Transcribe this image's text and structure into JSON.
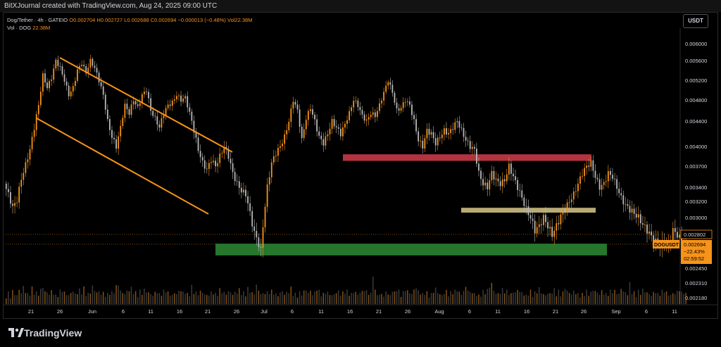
{
  "header": {
    "attribution": "BitXJournal created with TradingView.com, Aug 24, 2025 09:00 UTC"
  },
  "legend": {
    "symbol": "Dog/Tether · 4h · GATEIO",
    "ohlc": "O0.002704 H0.002727 L0.002688 C0.002694 −0.000013 (−0.48%) Vol22.38M",
    "volume": "Vol · DOG",
    "volume_value": "22.38M"
  },
  "currency_button": "USDT",
  "brand": "TradingView",
  "colors": {
    "up": "#f7931a",
    "down": "#b8b8b8",
    "channel": "#f7931a",
    "resistance_zone": "#c73a45",
    "mid_zone": "#d8c98a",
    "support_zone": "#2e8b35",
    "price_tag": "#f7931a"
  },
  "chart_data": {
    "type": "candlestick",
    "title": "",
    "price_axis": {
      "ticks": [
        "0.006000",
        "0.005600",
        "0.005200",
        "0.004800",
        "0.004400",
        "0.004000",
        "0.003700",
        "0.003400",
        "0.003200",
        "0.003000",
        "0.002802",
        "0.002694",
        "0.002450",
        "0.002310",
        "0.002180"
      ]
    },
    "time_axis": {
      "ticks": [
        "21",
        "26",
        "Jun",
        "6",
        "11",
        "16",
        "21",
        "26",
        "Jul",
        "6",
        "11",
        "16",
        "21",
        "26",
        "Aug",
        "6",
        "11",
        "16",
        "21",
        "26",
        "Sep",
        "6",
        "11"
      ]
    },
    "price_series": [
      [
        0,
        0.00345
      ],
      [
        2,
        0.0033
      ],
      [
        4,
        0.00312
      ],
      [
        6,
        0.00322
      ],
      [
        8,
        0.00352
      ],
      [
        10,
        0.00372
      ],
      [
        12,
        0.00395
      ],
      [
        14,
        0.0043
      ],
      [
        16,
        0.0047
      ],
      [
        18,
        0.0053
      ],
      [
        20,
        0.00505
      ],
      [
        22,
        0.00525
      ],
      [
        24,
        0.0056
      ],
      [
        26,
        0.00545
      ],
      [
        28,
        0.0052
      ],
      [
        30,
        0.0049
      ],
      [
        32,
        0.00505
      ],
      [
        34,
        0.0054
      ],
      [
        36,
        0.00555
      ],
      [
        38,
        0.00535
      ],
      [
        40,
        0.0056
      ],
      [
        42,
        0.00545
      ],
      [
        44,
        0.0052
      ],
      [
        46,
        0.0049
      ],
      [
        48,
        0.0044
      ],
      [
        50,
        0.00415
      ],
      [
        52,
        0.004
      ],
      [
        54,
        0.0043
      ],
      [
        56,
        0.0047
      ],
      [
        58,
        0.00455
      ],
      [
        60,
        0.0048
      ],
      [
        62,
        0.00465
      ],
      [
        64,
        0.0049
      ],
      [
        66,
        0.005
      ],
      [
        68,
        0.0046
      ],
      [
        70,
        0.00445
      ],
      [
        72,
        0.0043
      ],
      [
        74,
        0.00455
      ],
      [
        76,
        0.0047
      ],
      [
        78,
        0.00475
      ],
      [
        80,
        0.0049
      ],
      [
        82,
        0.0048
      ],
      [
        84,
        0.00485
      ],
      [
        86,
        0.00455
      ],
      [
        88,
        0.00425
      ],
      [
        90,
        0.00395
      ],
      [
        92,
        0.00375
      ],
      [
        94,
        0.00365
      ],
      [
        96,
        0.0038
      ],
      [
        98,
        0.0037
      ],
      [
        100,
        0.00385
      ],
      [
        102,
        0.004
      ],
      [
        104,
        0.00385
      ],
      [
        106,
        0.0036
      ],
      [
        108,
        0.00345
      ],
      [
        110,
        0.00335
      ],
      [
        112,
        0.0033
      ],
      [
        114,
        0.00305
      ],
      [
        116,
        0.00282
      ],
      [
        118,
        0.0027
      ],
      [
        119,
        0.00262
      ],
      [
        120,
        0.0029
      ],
      [
        122,
        0.0034
      ],
      [
        124,
        0.00375
      ],
      [
        126,
        0.0039
      ],
      [
        128,
        0.004
      ],
      [
        130,
        0.00415
      ],
      [
        132,
        0.0044
      ],
      [
        134,
        0.0048
      ],
      [
        136,
        0.0046
      ],
      [
        138,
        0.0041
      ],
      [
        140,
        0.00445
      ],
      [
        142,
        0.00465
      ],
      [
        144,
        0.0044
      ],
      [
        146,
        0.00415
      ],
      [
        148,
        0.00405
      ],
      [
        150,
        0.0042
      ],
      [
        152,
        0.0044
      ],
      [
        154,
        0.0043
      ],
      [
        156,
        0.0042
      ],
      [
        158,
        0.00435
      ],
      [
        160,
        0.00455
      ],
      [
        162,
        0.0048
      ],
      [
        164,
        0.0047
      ],
      [
        166,
        0.0045
      ],
      [
        168,
        0.0044
      ],
      [
        170,
        0.00455
      ],
      [
        172,
        0.0045
      ],
      [
        174,
        0.0047
      ],
      [
        176,
        0.00495
      ],
      [
        178,
        0.0052
      ],
      [
        180,
        0.00495
      ],
      [
        182,
        0.0046
      ],
      [
        184,
        0.00465
      ],
      [
        186,
        0.0048
      ],
      [
        188,
        0.0047
      ],
      [
        190,
        0.0044
      ],
      [
        192,
        0.0041
      ],
      [
        194,
        0.004
      ],
      [
        196,
        0.00425
      ],
      [
        198,
        0.0042
      ],
      [
        200,
        0.00405
      ],
      [
        202,
        0.00415
      ],
      [
        204,
        0.00425
      ],
      [
        206,
        0.0042
      ],
      [
        208,
        0.0043
      ],
      [
        210,
        0.0044
      ],
      [
        212,
        0.00425
      ],
      [
        214,
        0.0041
      ],
      [
        216,
        0.004
      ],
      [
        218,
        0.00395
      ],
      [
        220,
        0.0036
      ],
      [
        222,
        0.00345
      ],
      [
        224,
        0.0034
      ],
      [
        226,
        0.0036
      ],
      [
        228,
        0.0035
      ],
      [
        230,
        0.00345
      ],
      [
        232,
        0.0035
      ],
      [
        234,
        0.0037
      ],
      [
        236,
        0.00355
      ],
      [
        238,
        0.0034
      ],
      [
        240,
        0.00325
      ],
      [
        242,
        0.0031
      ],
      [
        244,
        0.003
      ],
      [
        246,
        0.00285
      ],
      [
        248,
        0.0029
      ],
      [
        250,
        0.003
      ],
      [
        252,
        0.0029
      ],
      [
        254,
        0.0028
      ],
      [
        256,
        0.0029
      ],
      [
        258,
        0.00302
      ],
      [
        260,
        0.0031
      ],
      [
        262,
        0.0032
      ],
      [
        264,
        0.0033
      ],
      [
        266,
        0.00345
      ],
      [
        268,
        0.0036
      ],
      [
        270,
        0.0037
      ],
      [
        272,
        0.00375
      ],
      [
        274,
        0.00355
      ],
      [
        276,
        0.0034
      ],
      [
        278,
        0.00345
      ],
      [
        280,
        0.0036
      ],
      [
        282,
        0.00355
      ],
      [
        284,
        0.0034
      ],
      [
        286,
        0.00325
      ],
      [
        288,
        0.00315
      ],
      [
        290,
        0.0031
      ],
      [
        292,
        0.00305
      ],
      [
        294,
        0.003
      ],
      [
        296,
        0.00292
      ],
      [
        298,
        0.00285
      ],
      [
        300,
        0.00278
      ],
      [
        302,
        0.00272
      ],
      [
        304,
        0.00268
      ],
      [
        306,
        0.00272
      ],
      [
        308,
        0.00268
      ],
      [
        310,
        0.00285
      ],
      [
        312,
        0.0028
      ],
      [
        314,
        0.00272
      ],
      [
        316,
        0.002694
      ]
    ],
    "volume_series": [
      6,
      8,
      5,
      9,
      7,
      6,
      10,
      8,
      12,
      9,
      7,
      8,
      11,
      9,
      8,
      7,
      10,
      12,
      9,
      8,
      7,
      9,
      8,
      6,
      7,
      9,
      11,
      8,
      7,
      6,
      8,
      9,
      7,
      8,
      10,
      9,
      11,
      8,
      7,
      9,
      12,
      10,
      8,
      9,
      7,
      8,
      6,
      7,
      9,
      8,
      10,
      12,
      15,
      9,
      8,
      7,
      9,
      10,
      11,
      9,
      8,
      7,
      9,
      8,
      10,
      9,
      8,
      7,
      6,
      8,
      9,
      7,
      8,
      9,
      11,
      8,
      7,
      6,
      8,
      7,
      9,
      10,
      8,
      9,
      7,
      8,
      12,
      9,
      8,
      7,
      9,
      8,
      7,
      6,
      7,
      8,
      9,
      7,
      8,
      10,
      9,
      8,
      7,
      9,
      8,
      7,
      8,
      9,
      10,
      9,
      8,
      7,
      11,
      9,
      8,
      7,
      14,
      9,
      8,
      7,
      9,
      8,
      10,
      9,
      8,
      7,
      6,
      8,
      9,
      7,
      8,
      9,
      11,
      8,
      7,
      6,
      8,
      7,
      9,
      10,
      8,
      9,
      7,
      8,
      12,
      9,
      8,
      7,
      9,
      8,
      7,
      6,
      7,
      8,
      9,
      7,
      8,
      10,
      9,
      8,
      7,
      9,
      8,
      7,
      8,
      9,
      10,
      9,
      8,
      7,
      28,
      9,
      8
    ],
    "channel": {
      "upper": [
        [
          0.00575,
          0.00565
        ],
        [
          0.00405,
          0.00395
        ]
      ],
      "lower": [
        [
          0.00478,
          0.0047
        ],
        [
          0.00305,
          0.003
        ]
      ]
    },
    "zones": [
      {
        "name": "resistance",
        "from": 0.00378,
        "to": 0.00388
      },
      {
        "name": "mid",
        "from": 0.00306,
        "to": 0.00312
      },
      {
        "name": "support",
        "from": 0.00258,
        "to": 0.0027
      }
    ],
    "prev_close_line": 0.002802,
    "last_price": {
      "symbol": "DOGUSDT",
      "price": "0.002694",
      "change": "−22.43%",
      "countdown": "02:59:52"
    },
    "high_tag": "0.002802"
  }
}
